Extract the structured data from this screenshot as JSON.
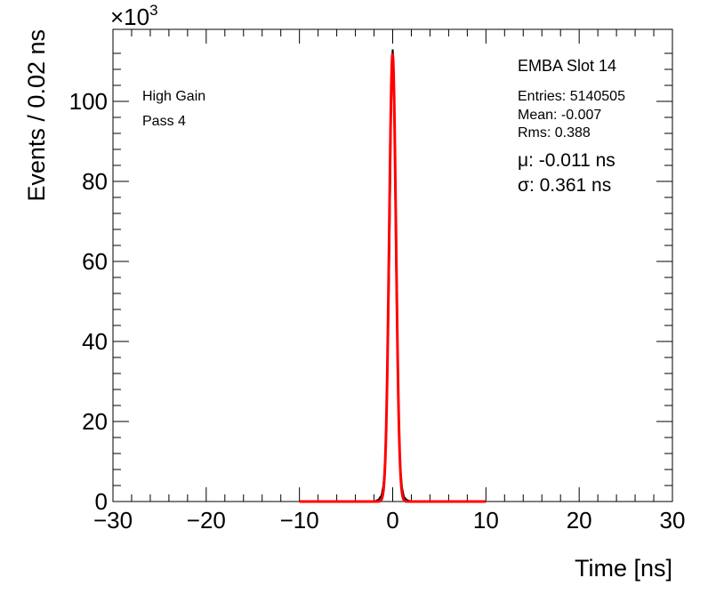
{
  "chart_data": {
    "type": "line",
    "title": "",
    "xlabel": "Time [ns]",
    "ylabel": "Events / 0.02 ns",
    "xlim": [
      -30,
      30
    ],
    "ylim": [
      0,
      1.18
    ],
    "y_multiplier_label": "×10",
    "y_multiplier_exp": "3",
    "x_ticks": [
      -30,
      -20,
      -10,
      0,
      10,
      20,
      30
    ],
    "x_tick_labels": [
      "−30",
      "−20",
      "−10",
      "0",
      "10",
      "20",
      "30"
    ],
    "y_ticks": [
      0,
      0.2,
      0.4,
      0.6,
      0.8,
      1.0
    ],
    "y_tick_labels": [
      "0",
      "20",
      "40",
      "60",
      "80",
      "100"
    ],
    "grid": false,
    "left_labels": [
      "High Gain",
      "Pass 4"
    ],
    "stats": {
      "title": "EMBA Slot 14",
      "entries": "Entries: 5140505",
      "mean": "Mean: -0.007",
      "rms": "Rms: 0.388",
      "mu": "μ: -0.011 ns",
      "sigma": "σ: 0.361 ns"
    },
    "series": [
      {
        "color": "#000000",
        "x": [
          -2.0,
          -1.5,
          -1.2,
          -1.0,
          -0.8,
          -0.6,
          -0.4,
          -0.3,
          -0.2,
          -0.1,
          -0.05,
          0.0,
          0.05,
          0.1,
          0.2,
          0.3,
          0.4,
          0.6,
          0.8,
          1.0,
          1.2,
          1.5,
          2.0
        ],
        "y": [
          0.0,
          0.005,
          0.015,
          0.04,
          0.1,
          0.28,
          0.55,
          0.73,
          0.93,
          1.06,
          1.11,
          1.13,
          1.11,
          1.06,
          0.92,
          0.72,
          0.53,
          0.27,
          0.09,
          0.035,
          0.012,
          0.004,
          0.0
        ]
      },
      {
        "color": "#ff0000",
        "fit": {
          "type": "gaussian",
          "amplitude": 1.12,
          "mean": -0.011,
          "sigma": 0.361,
          "range": [
            -10,
            10
          ]
        }
      }
    ]
  }
}
